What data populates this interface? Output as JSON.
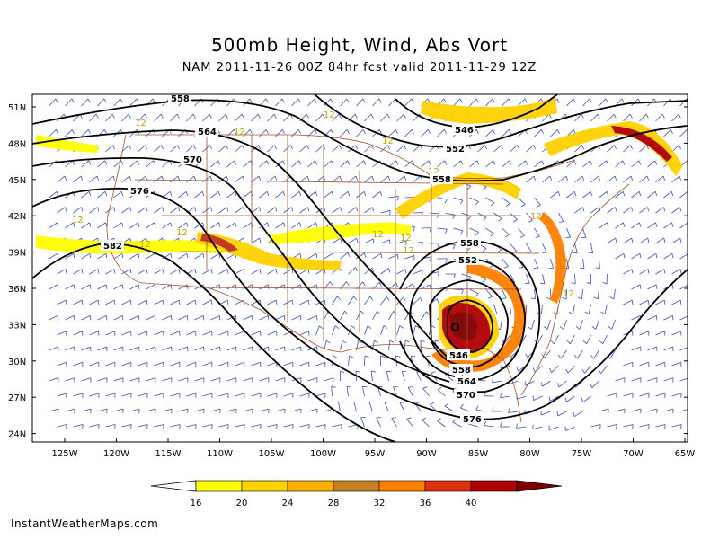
{
  "title": "500mb Height, Wind, Abs Vort",
  "subtitle": "NAM 2011-11-26 00Z 84hr fcst valid 2011-11-29 12Z",
  "brand": "InstantWeatherMaps.com",
  "map": {
    "lat_labels": [
      "51N",
      "48N",
      "45N",
      "42N",
      "39N",
      "36N",
      "33N",
      "30N",
      "27N",
      "24N"
    ],
    "lon_labels": [
      "125W",
      "120W",
      "115W",
      "110W",
      "105W",
      "100W",
      "95W",
      "90W",
      "85W",
      "80W",
      "75W",
      "70W",
      "65W"
    ],
    "contours": [
      {
        "label": "546",
        "value": 546
      },
      {
        "label": "552",
        "value": 552
      },
      {
        "label": "558",
        "value": 558
      },
      {
        "label": "564",
        "value": 564
      },
      {
        "label": "570",
        "value": 570
      },
      {
        "label": "576",
        "value": 576
      },
      {
        "label": "582",
        "value": 582
      }
    ],
    "center_marker": "O",
    "vort_label": "12"
  },
  "colorbar": {
    "ticks": [
      "16",
      "20",
      "24",
      "28",
      "32",
      "36",
      "40"
    ],
    "colors": [
      "#ffff00",
      "#ffd200",
      "#ffb000",
      "#c87f20",
      "#ff7f00",
      "#e03010",
      "#b00000",
      "#800000"
    ]
  },
  "colors": {
    "wind": "#3a4fb0",
    "border": "#a0522d",
    "height": "#000000"
  }
}
